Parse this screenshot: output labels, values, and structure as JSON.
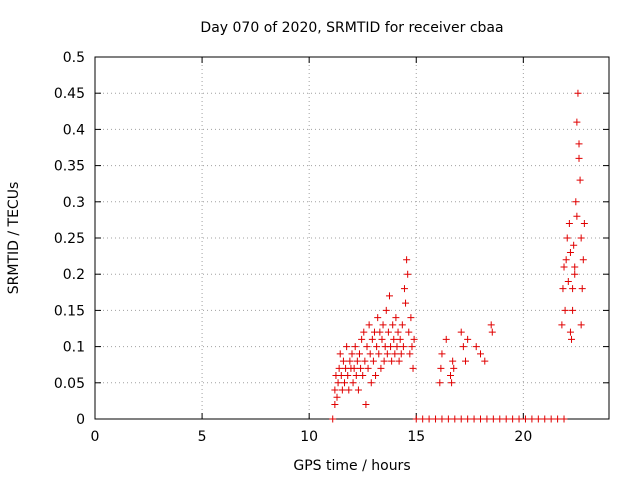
{
  "chart_data": {
    "type": "scatter",
    "title": "Day 070 of 2020, SRMTID for receiver cbaa",
    "xlabel": "GPS time / hours",
    "ylabel": "SRMTID / TECUs",
    "xlim": [
      0,
      24
    ],
    "ylim": [
      0,
      0.5
    ],
    "xticks": [
      0,
      5,
      10,
      15,
      20
    ],
    "yticks": [
      0,
      0.05,
      0.1,
      0.15,
      0.2,
      0.25,
      0.3,
      0.35,
      0.4,
      0.45,
      0.5
    ],
    "xtick_labels": [
      "0",
      "5",
      "10",
      "15",
      "20"
    ],
    "ytick_labels": [
      "0",
      "0.05",
      "0.1",
      "0.15",
      "0.2",
      "0.25",
      "0.3",
      "0.35",
      "0.4",
      "0.45",
      "0.5"
    ],
    "grid": true,
    "legend": "none",
    "series": [
      {
        "name": "SRMTID",
        "color": "#e00000",
        "marker": "+",
        "points": [
          [
            11.1,
            0.0
          ],
          [
            11.2,
            0.02
          ],
          [
            11.2,
            0.04
          ],
          [
            11.25,
            0.06
          ],
          [
            11.3,
            0.03
          ],
          [
            11.35,
            0.05
          ],
          [
            11.4,
            0.07
          ],
          [
            11.45,
            0.09
          ],
          [
            11.5,
            0.06
          ],
          [
            11.55,
            0.04
          ],
          [
            11.6,
            0.08
          ],
          [
            11.65,
            0.05
          ],
          [
            11.7,
            0.07
          ],
          [
            11.75,
            0.1
          ],
          [
            11.8,
            0.06
          ],
          [
            11.85,
            0.04
          ],
          [
            11.9,
            0.08
          ],
          [
            11.95,
            0.07
          ],
          [
            12.0,
            0.09
          ],
          [
            12.05,
            0.05
          ],
          [
            12.1,
            0.07
          ],
          [
            12.15,
            0.1
          ],
          [
            12.2,
            0.06
          ],
          [
            12.25,
            0.08
          ],
          [
            12.3,
            0.04
          ],
          [
            12.35,
            0.09
          ],
          [
            12.4,
            0.07
          ],
          [
            12.45,
            0.11
          ],
          [
            12.5,
            0.06
          ],
          [
            12.55,
            0.12
          ],
          [
            12.6,
            0.08
          ],
          [
            12.65,
            0.02
          ],
          [
            12.7,
            0.1
          ],
          [
            12.75,
            0.07
          ],
          [
            12.8,
            0.13
          ],
          [
            12.85,
            0.09
          ],
          [
            12.9,
            0.05
          ],
          [
            12.95,
            0.11
          ],
          [
            13.0,
            0.08
          ],
          [
            13.05,
            0.12
          ],
          [
            13.1,
            0.06
          ],
          [
            13.15,
            0.1
          ],
          [
            13.2,
            0.14
          ],
          [
            13.25,
            0.09
          ],
          [
            13.3,
            0.12
          ],
          [
            13.35,
            0.07
          ],
          [
            13.4,
            0.11
          ],
          [
            13.45,
            0.13
          ],
          [
            13.5,
            0.08
          ],
          [
            13.55,
            0.1
          ],
          [
            13.6,
            0.15
          ],
          [
            13.65,
            0.09
          ],
          [
            13.7,
            0.12
          ],
          [
            13.75,
            0.17
          ],
          [
            13.8,
            0.1
          ],
          [
            13.85,
            0.08
          ],
          [
            13.9,
            0.13
          ],
          [
            13.95,
            0.11
          ],
          [
            14.0,
            0.09
          ],
          [
            14.05,
            0.14
          ],
          [
            14.1,
            0.1
          ],
          [
            14.15,
            0.12
          ],
          [
            14.2,
            0.08
          ],
          [
            14.25,
            0.11
          ],
          [
            14.3,
            0.09
          ],
          [
            14.35,
            0.13
          ],
          [
            14.4,
            0.1
          ],
          [
            14.45,
            0.18
          ],
          [
            14.5,
            0.16
          ],
          [
            14.55,
            0.22
          ],
          [
            14.6,
            0.2
          ],
          [
            14.65,
            0.12
          ],
          [
            14.7,
            0.09
          ],
          [
            14.75,
            0.14
          ],
          [
            14.8,
            0.1
          ],
          [
            14.85,
            0.07
          ],
          [
            14.9,
            0.11
          ],
          [
            16.1,
            0.05
          ],
          [
            16.15,
            0.07
          ],
          [
            16.2,
            0.09
          ],
          [
            16.4,
            0.11
          ],
          [
            16.6,
            0.06
          ],
          [
            16.65,
            0.05
          ],
          [
            16.7,
            0.08
          ],
          [
            16.75,
            0.07
          ],
          [
            17.1,
            0.12
          ],
          [
            17.2,
            0.1
          ],
          [
            17.3,
            0.08
          ],
          [
            17.4,
            0.11
          ],
          [
            17.8,
            0.1
          ],
          [
            18.0,
            0.09
          ],
          [
            18.2,
            0.08
          ],
          [
            18.5,
            0.13
          ],
          [
            18.55,
            0.12
          ],
          [
            15.0,
            0.0
          ],
          [
            15.3,
            0.0
          ],
          [
            15.6,
            0.0
          ],
          [
            15.9,
            0.0
          ],
          [
            16.2,
            0.0
          ],
          [
            16.5,
            0.0
          ],
          [
            16.8,
            0.0
          ],
          [
            17.1,
            0.0
          ],
          [
            17.4,
            0.0
          ],
          [
            17.7,
            0.0
          ],
          [
            18.0,
            0.0
          ],
          [
            18.3,
            0.0
          ],
          [
            18.6,
            0.0
          ],
          [
            18.9,
            0.0
          ],
          [
            19.2,
            0.0
          ],
          [
            19.5,
            0.0
          ],
          [
            19.8,
            0.0
          ],
          [
            20.1,
            0.0
          ],
          [
            20.4,
            0.0
          ],
          [
            20.7,
            0.0
          ],
          [
            21.0,
            0.0
          ],
          [
            21.3,
            0.0
          ],
          [
            21.6,
            0.0
          ],
          [
            21.9,
            0.0
          ],
          [
            21.8,
            0.13
          ],
          [
            21.85,
            0.18
          ],
          [
            21.9,
            0.21
          ],
          [
            21.95,
            0.15
          ],
          [
            22.0,
            0.22
          ],
          [
            22.05,
            0.25
          ],
          [
            22.1,
            0.19
          ],
          [
            22.15,
            0.27
          ],
          [
            22.2,
            0.23
          ],
          [
            22.25,
            0.11
          ],
          [
            22.3,
            0.18
          ],
          [
            22.35,
            0.24
          ],
          [
            22.4,
            0.21
          ],
          [
            22.45,
            0.3
          ],
          [
            22.5,
            0.41
          ],
          [
            22.55,
            0.45
          ],
          [
            22.6,
            0.38
          ],
          [
            22.65,
            0.33
          ],
          [
            22.7,
            0.25
          ],
          [
            22.75,
            0.18
          ],
          [
            22.8,
            0.22
          ],
          [
            22.85,
            0.27
          ],
          [
            22.7,
            0.13
          ],
          [
            22.6,
            0.36
          ],
          [
            22.5,
            0.28
          ],
          [
            22.4,
            0.2
          ],
          [
            22.3,
            0.15
          ],
          [
            22.2,
            0.12
          ]
        ]
      }
    ]
  }
}
